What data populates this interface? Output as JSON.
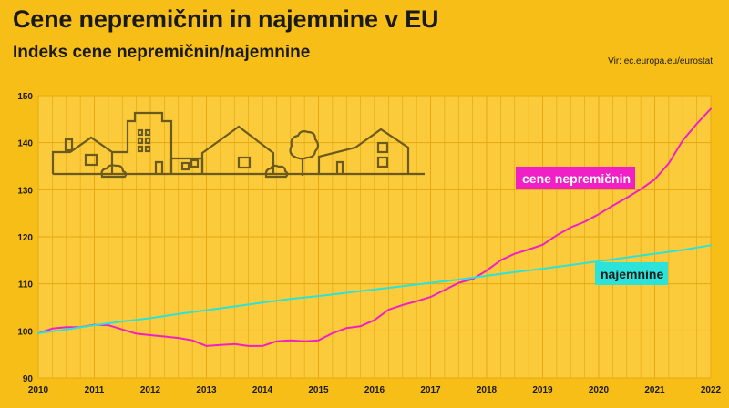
{
  "title": "Cene nepremičnin in najemnine v EU",
  "subtitle": "Indeks cene nepremičnin/najemnine",
  "source": "Vir: ec.europa.eu/eurostat",
  "colors": {
    "background": "#F7BE17",
    "plot_background": "#FBCB3C",
    "house_prices": "#F01FC6",
    "rents": "#2BE3D9",
    "grid": "#E5A90F",
    "illustration": "#6A5A1E"
  },
  "chart_data": {
    "type": "line",
    "title": "Cene nepremičnin in najemnine v EU",
    "subtitle": "Indeks cene nepremičnin/najemnine",
    "x_range": [
      2010,
      2022
    ],
    "x_ticks": [
      "2010",
      "2011",
      "2012",
      "2013",
      "2014",
      "2015",
      "2016",
      "2017",
      "2018",
      "2019",
      "2020",
      "2021",
      "2022"
    ],
    "ylim": [
      90,
      150
    ],
    "y_ticks": [
      "90",
      "100",
      "110",
      "120",
      "130",
      "140",
      "150"
    ],
    "grid": true,
    "series": [
      {
        "name": "cene nepremičnin",
        "color": "#F01FC6",
        "x": [
          2010.0,
          2010.25,
          2010.5,
          2010.75,
          2011.0,
          2011.25,
          2011.5,
          2011.75,
          2012.0,
          2012.25,
          2012.5,
          2012.75,
          2013.0,
          2013.25,
          2013.5,
          2013.75,
          2014.0,
          2014.25,
          2014.5,
          2014.75,
          2015.0,
          2015.25,
          2015.5,
          2015.75,
          2016.0,
          2016.25,
          2016.5,
          2016.75,
          2017.0,
          2017.25,
          2017.5,
          2017.75,
          2018.0,
          2018.25,
          2018.5,
          2018.75,
          2019.0,
          2019.25,
          2019.5,
          2019.75,
          2020.0,
          2020.25,
          2020.5,
          2020.75,
          2021.0,
          2021.25,
          2021.5,
          2021.75,
          2022.0
        ],
        "y": [
          99.5,
          100.5,
          100.8,
          100.8,
          101.3,
          101.2,
          100.3,
          99.4,
          99.1,
          98.8,
          98.5,
          98.0,
          96.8,
          97.0,
          97.2,
          96.8,
          96.8,
          97.8,
          98.0,
          97.8,
          98.0,
          99.5,
          100.6,
          101.0,
          102.3,
          104.5,
          105.5,
          106.3,
          107.2,
          108.7,
          110.2,
          111.0,
          112.8,
          115.0,
          116.4,
          117.3,
          118.3,
          120.3,
          122.0,
          123.2,
          124.8,
          126.6,
          128.3,
          130.1,
          132.2,
          135.6,
          140.5,
          144.0,
          147.2
        ]
      },
      {
        "name": "najemnine",
        "color": "#2BE3D9",
        "x": [
          2010.0,
          2010.5,
          2011.0,
          2011.5,
          2012.0,
          2012.5,
          2013.0,
          2013.5,
          2014.0,
          2014.5,
          2015.0,
          2015.5,
          2016.0,
          2016.5,
          2017.0,
          2017.5,
          2018.0,
          2018.5,
          2019.0,
          2019.5,
          2020.0,
          2020.5,
          2021.0,
          2021.5,
          2022.0
        ],
        "y": [
          99.5,
          100.3,
          101.2,
          102.0,
          102.7,
          103.6,
          104.4,
          105.2,
          106.0,
          106.8,
          107.4,
          108.1,
          108.8,
          109.5,
          110.2,
          110.9,
          111.7,
          112.5,
          113.2,
          114.0,
          114.8,
          115.6,
          116.4,
          117.2,
          118.2
        ]
      }
    ]
  }
}
